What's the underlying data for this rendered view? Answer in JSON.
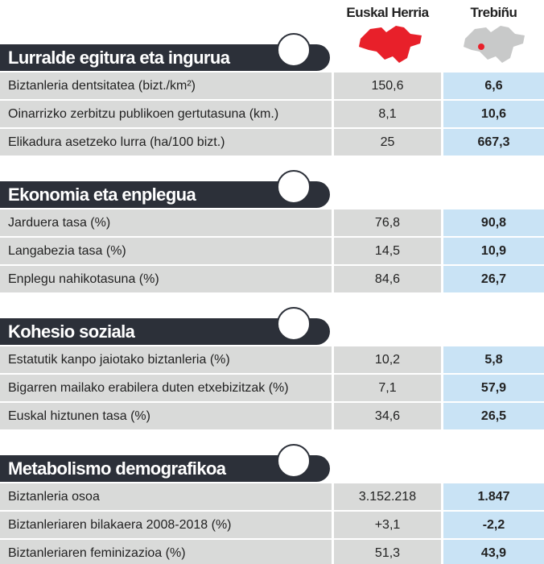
{
  "columns": [
    "Euskal Herria",
    "Trebiñu"
  ],
  "sections": [
    {
      "title": "Lurralde egitura eta ingurua",
      "rows": [
        [
          "Biztanleria dentsitatea (bizt./km²)",
          "150,6",
          "6,6"
        ],
        [
          "Oinarrizko zerbitzu publikoen gertutasuna (km.)",
          "8,1",
          "10,6"
        ],
        [
          "Elikadura asetzeko lurra (ha/100 bizt.)",
          "25",
          "667,3"
        ]
      ]
    },
    {
      "title": "Ekonomia eta enplegua",
      "rows": [
        [
          "Jarduera tasa (%)",
          "76,8",
          "90,8"
        ],
        [
          "Langabezia tasa (%)",
          "14,5",
          "10,9"
        ],
        [
          "Enplegu nahikotasuna (%)",
          "84,6",
          "26,7"
        ]
      ]
    },
    {
      "title": "Kohesio soziala",
      "rows": [
        [
          "Estatutik kanpo jaiotako biztanleria (%)",
          "10,2",
          "5,8"
        ],
        [
          "Bigarren mailako erabilera duten etxebizitzak (%)",
          "7,1",
          "57,9"
        ],
        [
          "Euskal hiztunen tasa (%)",
          "34,6",
          "26,5"
        ]
      ]
    },
    {
      "title": "Metabolismo demografikoa",
      "rows": [
        [
          "Biztanleria osoa",
          "3.152.218",
          "1.847"
        ],
        [
          "Biztanleriaren bilakaera 2008-2018 (%)",
          "+3,1",
          "-2,2"
        ],
        [
          "Biztanleriaren feminizazioa (%)",
          "51,3",
          "43,9"
        ]
      ]
    }
  ]
}
